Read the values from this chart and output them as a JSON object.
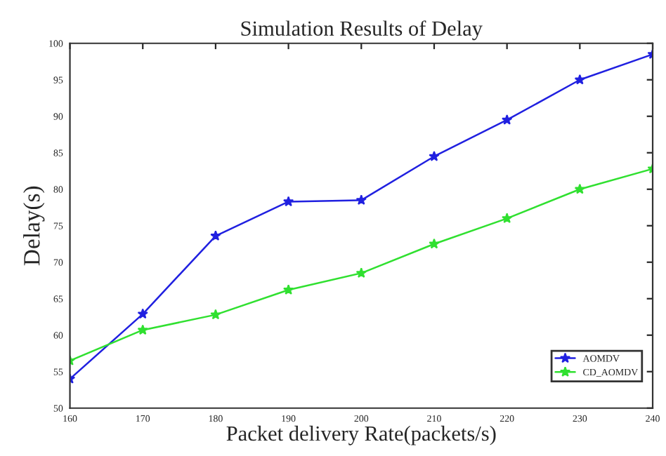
{
  "chart_data": {
    "type": "line",
    "title": "Simulation Results of Delay",
    "xlabel": "Packet delivery Rate(packets/s)",
    "ylabel": "Delay(s)",
    "x": [
      160,
      170,
      180,
      190,
      200,
      210,
      220,
      230,
      240
    ],
    "series": [
      {
        "name": "AOMDV",
        "color": "#2020e0",
        "values": [
          54,
          62.9,
          73.6,
          78.3,
          78.5,
          84.5,
          89.5,
          95,
          98.5
        ]
      },
      {
        "name": "CD_AOMDV",
        "color": "#30e030",
        "values": [
          56.5,
          60.7,
          62.8,
          66.2,
          68.5,
          72.5,
          76,
          80,
          82.8
        ]
      }
    ],
    "xlim": [
      160,
      240
    ],
    "xticks": [
      160,
      170,
      180,
      190,
      200,
      210,
      220,
      230,
      240
    ],
    "ylim": [
      50,
      100
    ],
    "yticks": [
      50,
      55,
      60,
      65,
      70,
      75,
      80,
      85,
      90,
      95,
      100
    ],
    "grid": false,
    "legend": "bottom right",
    "marker": "star",
    "line_style": "solid"
  }
}
